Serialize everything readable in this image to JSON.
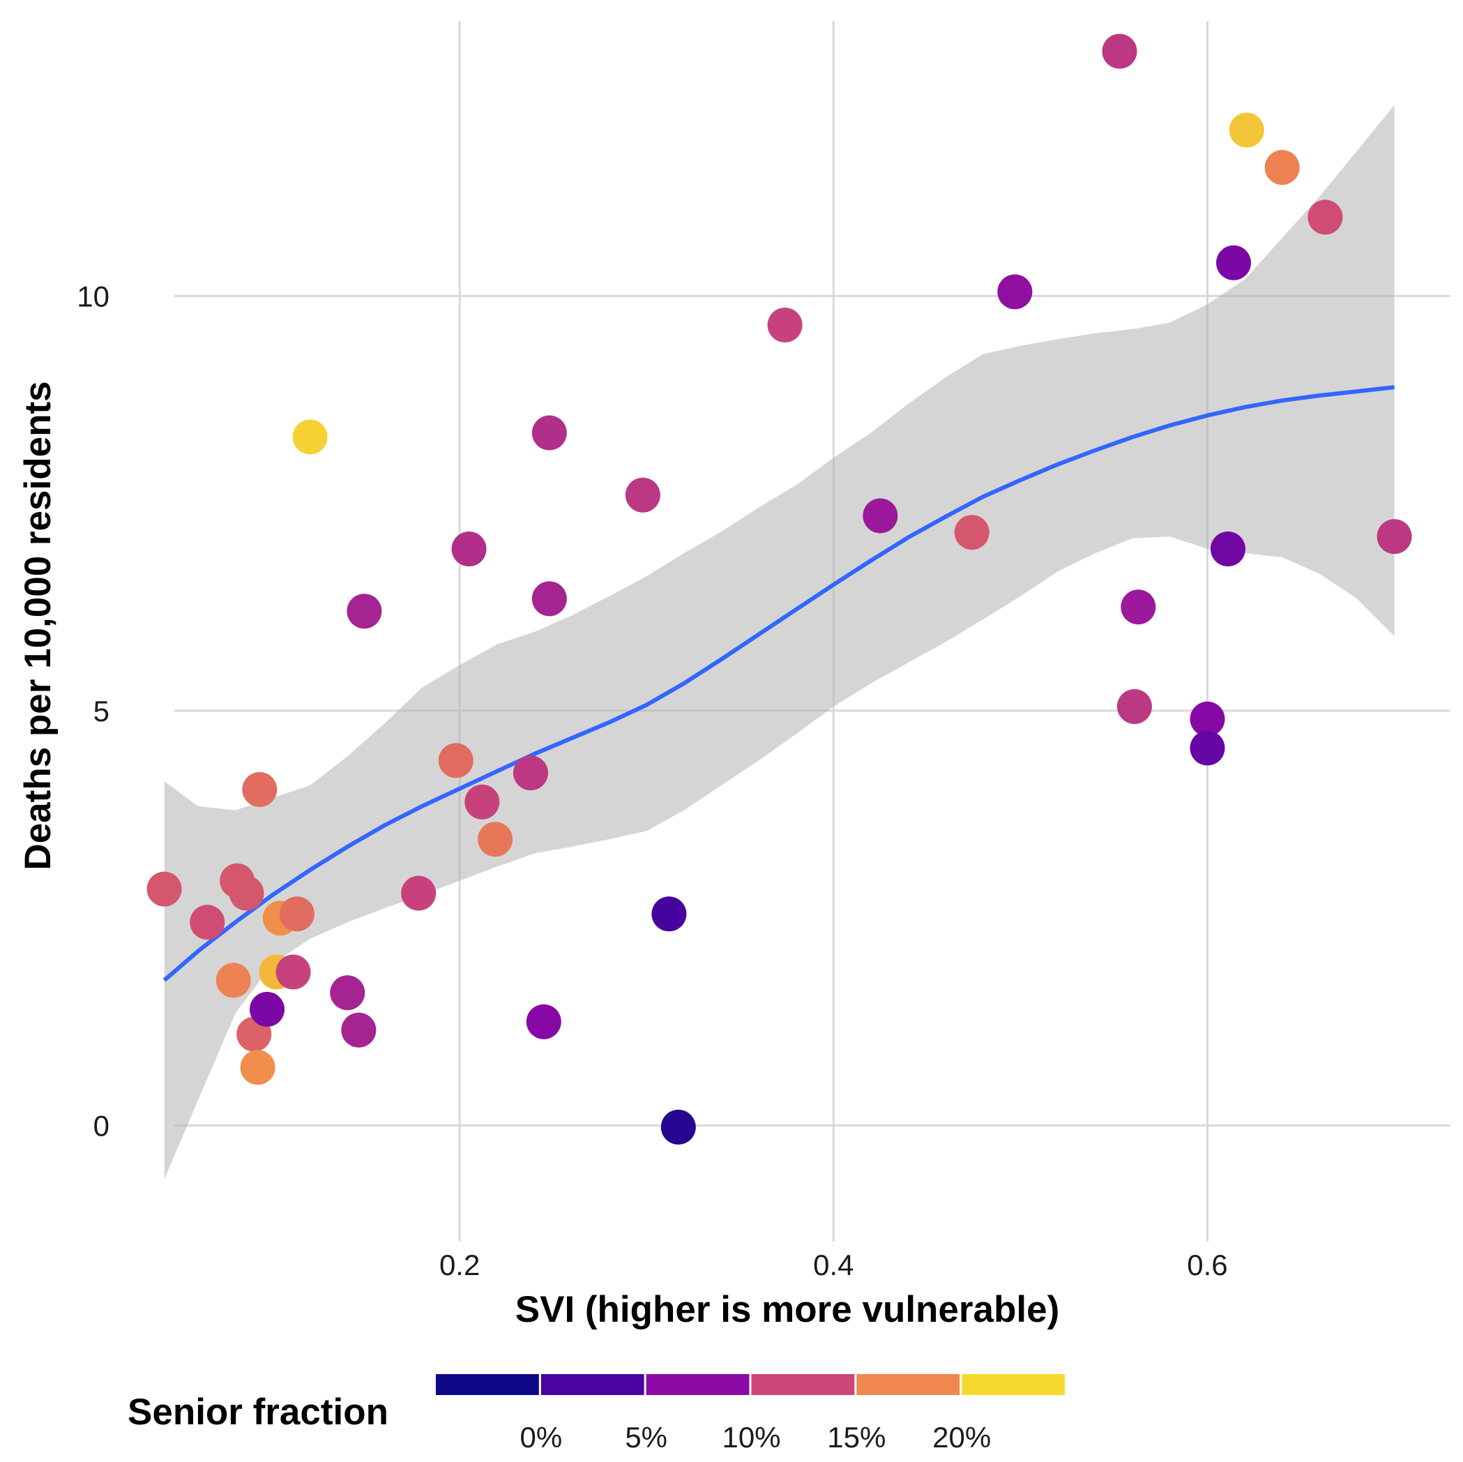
{
  "chart_data": {
    "type": "scatter",
    "title": "",
    "xlabel": "SVI (higher is more vulnerable)",
    "ylabel": "Deaths per 10,000 residents",
    "xlim": [
      0.025,
      0.73
    ],
    "ylim": [
      -1.4,
      13.4
    ],
    "x_ticks": [
      0.2,
      0.4,
      0.6
    ],
    "x_tick_labels": [
      "0.2",
      "0.4",
      "0.6"
    ],
    "y_ticks": [
      0,
      5,
      10
    ],
    "y_tick_labels": [
      "0",
      "5",
      "10"
    ],
    "grid": true,
    "color_scale": {
      "title": "Senior fraction",
      "palette": "plasma",
      "breaks": [
        0,
        5,
        10,
        15,
        20
      ],
      "labels": [
        "0%",
        "5%",
        "10%",
        "15%",
        "20%"
      ],
      "range": [
        -2.5,
        27.5
      ],
      "bins": [
        {
          "color": "#0d0887"
        },
        {
          "color": "#4b03a1"
        },
        {
          "color": "#8b0aa5"
        },
        {
          "color": "#cc4778"
        },
        {
          "color": "#f0874f"
        },
        {
          "color": "#f5d92e"
        }
      ],
      "position": "bottom"
    },
    "points": [
      {
        "x": 0.042,
        "y": 2.85,
        "senior": 17
      },
      {
        "x": 0.065,
        "y": 2.45,
        "senior": 16
      },
      {
        "x": 0.081,
        "y": 2.95,
        "senior": 17
      },
      {
        "x": 0.086,
        "y": 2.8,
        "senior": 17
      },
      {
        "x": 0.093,
        "y": 4.05,
        "senior": 19
      },
      {
        "x": 0.079,
        "y": 1.75,
        "senior": 21
      },
      {
        "x": 0.09,
        "y": 1.1,
        "senior": 18
      },
      {
        "x": 0.092,
        "y": 0.7,
        "senior": 22
      },
      {
        "x": 0.097,
        "y": 1.4,
        "senior": 8
      },
      {
        "x": 0.102,
        "y": 1.85,
        "senior": 25
      },
      {
        "x": 0.104,
        "y": 2.5,
        "senior": 22
      },
      {
        "x": 0.111,
        "y": 1.85,
        "senior": 15
      },
      {
        "x": 0.113,
        "y": 2.55,
        "senior": 19
      },
      {
        "x": 0.12,
        "y": 8.3,
        "senior": 27
      },
      {
        "x": 0.14,
        "y": 1.6,
        "senior": 12
      },
      {
        "x": 0.146,
        "y": 1.15,
        "senior": 12
      },
      {
        "x": 0.149,
        "y": 6.2,
        "senior": 12
      },
      {
        "x": 0.178,
        "y": 2.8,
        "senior": 15
      },
      {
        "x": 0.198,
        "y": 4.4,
        "senior": 19
      },
      {
        "x": 0.205,
        "y": 6.95,
        "senior": 13
      },
      {
        "x": 0.212,
        "y": 3.9,
        "senior": 15
      },
      {
        "x": 0.219,
        "y": 3.45,
        "senior": 20
      },
      {
        "x": 0.238,
        "y": 4.25,
        "senior": 14
      },
      {
        "x": 0.245,
        "y": 1.25,
        "senior": 9
      },
      {
        "x": 0.248,
        "y": 8.35,
        "senior": 13
      },
      {
        "x": 0.248,
        "y": 6.35,
        "senior": 12
      },
      {
        "x": 0.298,
        "y": 7.6,
        "senior": 14
      },
      {
        "x": 0.312,
        "y": 2.55,
        "senior": 3
      },
      {
        "x": 0.317,
        "y": -0.02,
        "senior": 0
      },
      {
        "x": 0.374,
        "y": 9.65,
        "senior": 15
      },
      {
        "x": 0.425,
        "y": 7.35,
        "senior": 11
      },
      {
        "x": 0.474,
        "y": 7.15,
        "senior": 17
      },
      {
        "x": 0.497,
        "y": 10.05,
        "senior": 10
      },
      {
        "x": 0.553,
        "y": 12.95,
        "senior": 14
      },
      {
        "x": 0.561,
        "y": 5.05,
        "senior": 14
      },
      {
        "x": 0.563,
        "y": 6.25,
        "senior": 11
      },
      {
        "x": 0.6,
        "y": 4.9,
        "senior": 9
      },
      {
        "x": 0.6,
        "y": 4.55,
        "senior": 6
      },
      {
        "x": 0.611,
        "y": 6.95,
        "senior": 7
      },
      {
        "x": 0.614,
        "y": 10.4,
        "senior": 8
      },
      {
        "x": 0.621,
        "y": 12.0,
        "senior": 26
      },
      {
        "x": 0.64,
        "y": 11.55,
        "senior": 21
      },
      {
        "x": 0.663,
        "y": 10.95,
        "senior": 16
      },
      {
        "x": 0.7,
        "y": 7.1,
        "senior": 14
      }
    ],
    "smooth": {
      "method": "loess",
      "color": "#3366ff",
      "band_color": "#b3b3b3",
      "x": [
        0.042,
        0.06,
        0.08,
        0.1,
        0.12,
        0.14,
        0.16,
        0.18,
        0.2,
        0.22,
        0.24,
        0.26,
        0.28,
        0.3,
        0.32,
        0.34,
        0.36,
        0.38,
        0.4,
        0.42,
        0.44,
        0.46,
        0.48,
        0.5,
        0.52,
        0.54,
        0.56,
        0.58,
        0.6,
        0.62,
        0.64,
        0.66,
        0.68,
        0.7
      ],
      "y": [
        1.75,
        2.1,
        2.45,
        2.78,
        3.08,
        3.36,
        3.62,
        3.85,
        4.06,
        4.27,
        4.48,
        4.67,
        4.86,
        5.07,
        5.33,
        5.62,
        5.92,
        6.22,
        6.52,
        6.81,
        7.09,
        7.34,
        7.58,
        7.78,
        7.97,
        8.14,
        8.3,
        8.44,
        8.56,
        8.66,
        8.74,
        8.8,
        8.85,
        8.9
      ],
      "lower": [
        -0.65,
        0.3,
        1.35,
        1.95,
        2.25,
        2.45,
        2.62,
        2.78,
        2.95,
        3.12,
        3.28,
        3.36,
        3.45,
        3.55,
        3.8,
        4.1,
        4.4,
        4.72,
        5.05,
        5.33,
        5.58,
        5.83,
        6.1,
        6.38,
        6.68,
        6.9,
        7.08,
        7.1,
        6.95,
        6.9,
        6.85,
        6.65,
        6.35,
        5.9
      ],
      "upper": [
        4.15,
        3.85,
        3.8,
        3.95,
        4.1,
        4.45,
        4.85,
        5.28,
        5.55,
        5.8,
        5.95,
        6.15,
        6.38,
        6.62,
        6.9,
        7.16,
        7.45,
        7.72,
        8.05,
        8.35,
        8.7,
        9.02,
        9.3,
        9.4,
        9.48,
        9.55,
        9.6,
        9.68,
        9.9,
        10.2,
        10.7,
        11.2,
        11.75,
        12.3
      ]
    }
  }
}
